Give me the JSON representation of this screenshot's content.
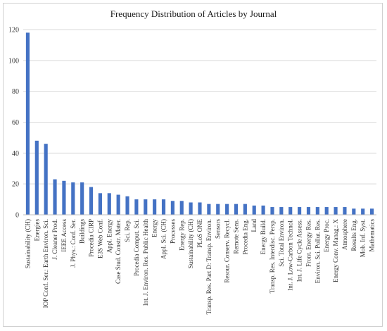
{
  "colors": {
    "bar": "#4472C4",
    "grid": "#d9d9d9",
    "axis": "#bfbfbf"
  },
  "chart_data": {
    "type": "bar",
    "title": "Frequency Distribution of Articles by Journal",
    "xlabel": "",
    "ylabel": "",
    "ylim": [
      0,
      120
    ],
    "yticks": [
      0,
      20,
      40,
      60,
      80,
      100,
      120
    ],
    "grid": true,
    "legend": "none",
    "categories": [
      "Sustainability (CH)",
      "Energies",
      "IOP Conf. Ser.: Earth Environ. Sci.",
      "J. Cleaner Prod.",
      "IEEE Access",
      "J. Phys.: Conf. Ser.",
      "Buildings",
      "Procedia CIRP",
      "E3S Web Conf.",
      "Appl. Energy",
      "Case Stud. Constr. Mater.",
      "Sci. Rep.",
      "Procedia Comput. Sci.",
      "Int. J. Environ. Res. Public Health",
      "Energy",
      "Appl. Sci. (CH)",
      "Processes",
      "Energy Rep.",
      "Sustainability (CH)",
      "PLoS ONE",
      "Transp. Res. Part D: Transp. Environ.",
      "Sensors",
      "Resour. Conserv. Recycl.",
      "Remote Sens.",
      "Procedia Eng.",
      "Land",
      "Energy Build.",
      "Transp. Res. Interdisc. Persp.",
      "Sci. Total Environ.",
      "Int. J. Low-Carbon Technol.",
      "Int. J. Life Cycle Assess.",
      "Front. Energy Res.",
      "Environ. Sci. Pollut. Res.",
      "Energy Proc.",
      "Energy Conv. Manag.: X",
      "Atmosphere",
      "Results Eng.",
      "Mob. Inf. Syst.",
      "Mathematics"
    ],
    "values": [
      118,
      48,
      46,
      23,
      22,
      21,
      21,
      18,
      14,
      14,
      13,
      12,
      10,
      10,
      10,
      10,
      9,
      9,
      8,
      8,
      7,
      7,
      7,
      7,
      7,
      6,
      6,
      5,
      5,
      5,
      5,
      5,
      5,
      5,
      5,
      5,
      4,
      4,
      4
    ]
  }
}
